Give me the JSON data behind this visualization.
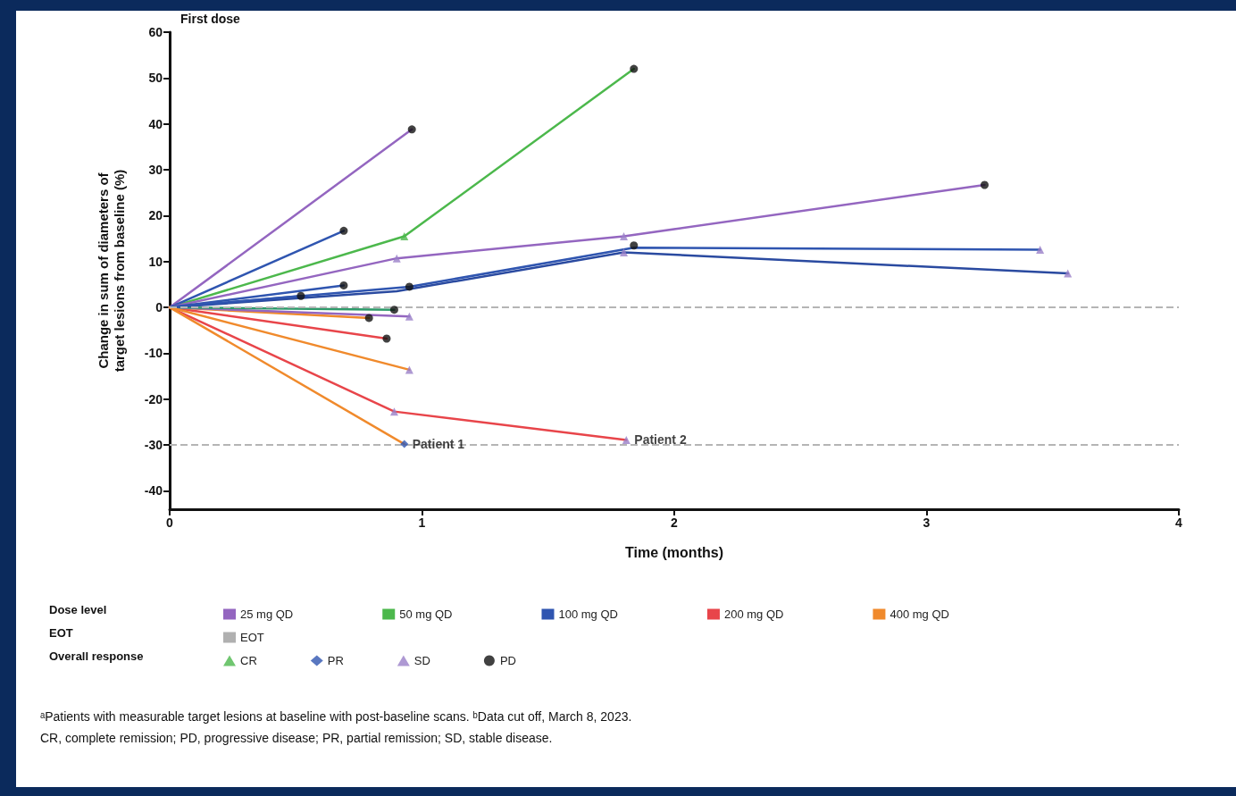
{
  "chart_data": {
    "type": "line",
    "xlabel": "Time (months)",
    "ylabel": "Change in sum of diameters of\ntarget lesions from baseline (%)",
    "xlim": [
      0,
      4
    ],
    "xticks": [
      0,
      1,
      2,
      3,
      4
    ],
    "ylim": [
      -44,
      60
    ],
    "yticks": [
      -40,
      -30,
      -20,
      -10,
      0,
      10,
      20,
      30,
      40,
      50,
      60
    ],
    "grid": false,
    "legend": "bottom",
    "line_style": "solid",
    "ref_lines": [
      {
        "axis": "y",
        "value": 0,
        "color": "#b5b5b5",
        "line_style": "dashed"
      },
      {
        "axis": "y",
        "value": -30,
        "color": "#b5b5b5",
        "line_style": "dashed"
      }
    ],
    "series": [
      {
        "name": "25 mg QD",
        "color": "#9466c0",
        "x": [
          0,
          0.96
        ],
        "values": [
          0,
          38.8
        ]
      },
      {
        "name": "50 mg QD",
        "color": "#4cb84c",
        "x": [
          0,
          0.93,
          1.84
        ],
        "values": [
          0,
          15.5,
          52
        ]
      },
      {
        "name": "100 mg QD",
        "color": "#2f55b0",
        "x": [
          0,
          0.69
        ],
        "values": [
          0,
          16.7
        ]
      },
      {
        "name": "200 mg QD",
        "color": "#e8454a",
        "x": [
          0,
          0.86
        ],
        "values": [
          0,
          -6.8
        ]
      },
      {
        "name": "400 mg QD",
        "color": "#f08a2c",
        "x": [
          0,
          0.79
        ],
        "values": [
          0,
          -2.3
        ]
      },
      {
        "name": "EOT",
        "color": "#b0b0b0"
      },
      {
        "color": "#9466c0",
        "x": [
          0,
          0.9,
          1.8,
          3.23
        ],
        "values": [
          0,
          10.7,
          15.5,
          26.7
        ]
      },
      {
        "color": "#9466c0",
        "x": [
          0,
          0.95
        ],
        "values": [
          0,
          -2
        ]
      },
      {
        "color": "#2e9a6a",
        "x": [
          0,
          0.89
        ],
        "values": [
          0,
          -0.5
        ]
      },
      {
        "color": "#2f55b0",
        "x": [
          0,
          0.95,
          1.84,
          3.45
        ],
        "values": [
          0,
          4.5,
          13,
          12.6
        ]
      },
      {
        "color": "#2a4aa0",
        "x": [
          0,
          0.9,
          1.8,
          3.56
        ],
        "values": [
          0,
          3.5,
          12,
          7.4
        ]
      },
      {
        "color": "#2f55b0",
        "x": [
          0,
          0.52
        ],
        "values": [
          0,
          2.5
        ]
      },
      {
        "color": "#2f55b0",
        "x": [
          0,
          0.69
        ],
        "values": [
          0,
          4.8
        ]
      },
      {
        "color": "#e8454a",
        "x": [
          0,
          0.89,
          1.81
        ],
        "values": [
          0,
          -22.7,
          -28.9
        ]
      },
      {
        "color": "#f08a2c",
        "x": [
          0,
          0.95
        ],
        "values": [
          0,
          -13.6
        ]
      },
      {
        "color": "#f08a2c",
        "x": [
          0,
          0.93
        ],
        "values": [
          0,
          -29.8
        ]
      },
      {
        "name": "CR",
        "type": "scatter",
        "marker": "triangle",
        "color": "#4cb84c",
        "x": [
          0.93
        ],
        "values": [
          15.5
        ]
      },
      {
        "name": "PR",
        "type": "scatter",
        "marker": "diamond",
        "color": "#2f55b0",
        "x": [
          0.93
        ],
        "values": [
          -29.8
        ]
      },
      {
        "name": "SD",
        "type": "scatter",
        "marker": "triangle",
        "color": "#9a7fc8",
        "x": [
          0.9,
          1.8,
          3.45,
          3.56,
          0.95,
          0.95,
          0.89,
          1.81,
          1.8
        ],
        "values": [
          10.7,
          15.5,
          12.6,
          7.4,
          -2,
          -13.6,
          -22.7,
          -28.9,
          12
        ]
      },
      {
        "name": "PD",
        "type": "scatter",
        "marker": "circle",
        "color": "#111111",
        "x": [
          0.96,
          1.84,
          0.69,
          3.23,
          0.52,
          0.69,
          0.89,
          0.79,
          0.86,
          1.84,
          0.95
        ],
        "values": [
          38.8,
          52,
          16.7,
          26.7,
          2.5,
          4.8,
          -0.5,
          -2.3,
          -6.8,
          13.5,
          4.5
        ]
      }
    ],
    "annotations": [
      "First dose",
      "Dose level",
      "EOT",
      "Overall response",
      {
        "text": "Patient 1",
        "x": 0.93,
        "y": -29.8
      },
      {
        "text": "Patient 2",
        "x": 1.81,
        "y": -28.9
      },
      "ᵃPatients with measurable target lesions at baseline with post-baseline scans. ᵇData cut off, March 8, 2023.",
      "CR, complete remission; PD, progressive disease; PR, partial remission; SD, stable disease."
    ]
  }
}
